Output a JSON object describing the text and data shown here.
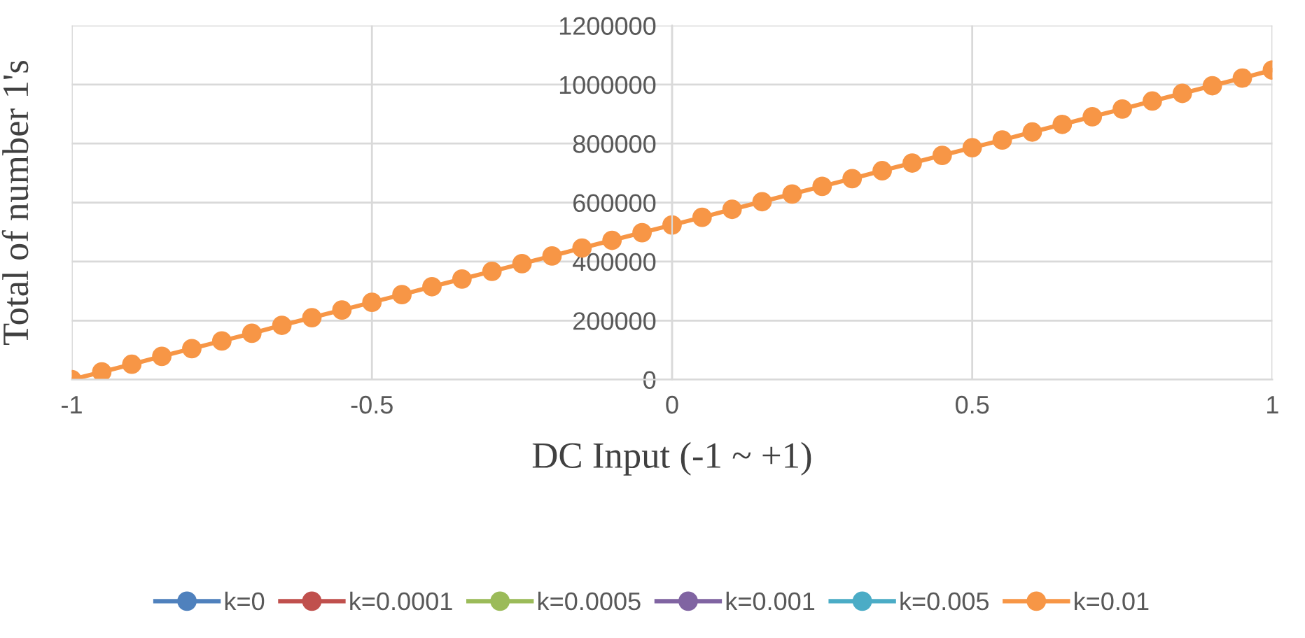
{
  "chart_data": {
    "type": "line",
    "xlabel": "DC Input (-1 ~ +1)",
    "ylabel": "Total of number 1's",
    "x": [
      -1,
      -0.95,
      -0.9,
      -0.85,
      -0.8,
      -0.75,
      -0.7,
      -0.65,
      -0.6,
      -0.55,
      -0.5,
      -0.45,
      -0.4,
      -0.35,
      -0.3,
      -0.25,
      -0.2,
      -0.15,
      -0.1,
      -0.05,
      0,
      0.05,
      0.1,
      0.15,
      0.2,
      0.25,
      0.3,
      0.35,
      0.4,
      0.45,
      0.5,
      0.55,
      0.6,
      0.65,
      0.7,
      0.75,
      0.8,
      0.85,
      0.9,
      0.95,
      1
    ],
    "series": [
      {
        "name": "k=0",
        "color": "#4f81bd",
        "values": [
          null,
          null,
          null,
          null,
          null,
          null,
          null,
          null,
          null,
          null,
          null,
          null,
          null,
          null,
          null,
          null,
          null,
          null,
          null,
          null,
          null,
          null,
          null,
          null,
          null,
          null,
          null,
          null,
          null,
          null,
          null,
          null,
          null,
          null,
          null,
          null,
          null,
          null,
          null,
          null,
          null
        ]
      },
      {
        "name": "k=0.0001",
        "color": "#c0504d",
        "values": [
          null,
          null,
          null,
          null,
          null,
          null,
          null,
          null,
          null,
          null,
          null,
          null,
          null,
          null,
          null,
          null,
          null,
          null,
          null,
          null,
          null,
          null,
          null,
          null,
          null,
          null,
          null,
          null,
          null,
          null,
          null,
          null,
          null,
          null,
          null,
          null,
          null,
          null,
          null,
          null,
          null
        ]
      },
      {
        "name": "k=0.0005",
        "color": "#9bbb59",
        "values": [
          null,
          null,
          null,
          null,
          null,
          null,
          null,
          null,
          null,
          null,
          null,
          null,
          null,
          null,
          null,
          null,
          null,
          null,
          null,
          null,
          null,
          null,
          null,
          null,
          null,
          null,
          null,
          null,
          null,
          null,
          null,
          null,
          null,
          null,
          null,
          null,
          null,
          null,
          null,
          null,
          null
        ]
      },
      {
        "name": "k=0.001",
        "color": "#8064a2",
        "values": [
          null,
          null,
          null,
          null,
          null,
          null,
          null,
          null,
          null,
          null,
          null,
          null,
          null,
          null,
          null,
          null,
          null,
          null,
          null,
          null,
          null,
          null,
          null,
          null,
          null,
          null,
          null,
          null,
          null,
          null,
          null,
          null,
          null,
          null,
          null,
          null,
          null,
          null,
          null,
          null,
          null
        ]
      },
      {
        "name": "k=0.005",
        "color": "#4bacc6",
        "values": [
          null,
          null,
          null,
          null,
          null,
          null,
          null,
          null,
          null,
          null,
          null,
          null,
          null,
          null,
          null,
          null,
          null,
          null,
          null,
          null,
          null,
          null,
          null,
          null,
          null,
          null,
          null,
          null,
          null,
          null,
          null,
          null,
          null,
          null,
          null,
          null,
          null,
          null,
          null,
          null,
          null
        ]
      },
      {
        "name": "k=0.01",
        "color": "#f79646",
        "values": [
          0,
          26000,
          52000,
          79000,
          105000,
          131000,
          157000,
          184000,
          210000,
          236000,
          262000,
          288000,
          315000,
          341000,
          367000,
          393000,
          419000,
          446000,
          472000,
          498000,
          524000,
          550000,
          577000,
          603000,
          629000,
          655000,
          681000,
          708000,
          734000,
          760000,
          786000,
          812000,
          839000,
          865000,
          891000,
          917000,
          944000,
          970000,
          996000,
          1022000,
          1049000
        ]
      }
    ],
    "xlim": [
      -1,
      1
    ],
    "xticks": [
      -1,
      -0.5,
      0,
      0.5,
      1
    ],
    "ylim": [
      0,
      1200000
    ],
    "yticks": [
      0,
      200000,
      400000,
      600000,
      800000,
      1000000,
      1200000
    ],
    "grid": true,
    "legend": "bottom",
    "marker": "circle",
    "line_style": "solid"
  }
}
